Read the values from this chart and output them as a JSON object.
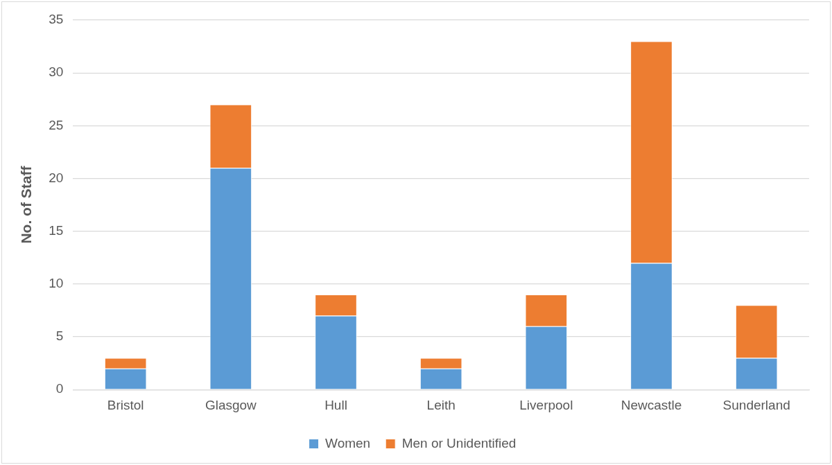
{
  "chart_data": {
    "type": "bar",
    "stacked": true,
    "ylabel": "No. of Staff",
    "categories": [
      "Bristol",
      "Glasgow",
      "Hull",
      "Leith",
      "Liverpool",
      "Newcastle",
      "Sunderland"
    ],
    "series": [
      {
        "name": "Women",
        "color": "#5b9bd5",
        "values": [
          2,
          21,
          7,
          2,
          6,
          12,
          3
        ]
      },
      {
        "name": "Men or Unidentified",
        "color": "#ed7d31",
        "values": [
          1,
          6,
          2,
          1,
          3,
          21,
          5
        ]
      }
    ],
    "ylim": [
      0,
      35
    ],
    "yticks": [
      0,
      5,
      10,
      15,
      20,
      25,
      30,
      35
    ],
    "grid": "y",
    "legend": "bottom"
  }
}
